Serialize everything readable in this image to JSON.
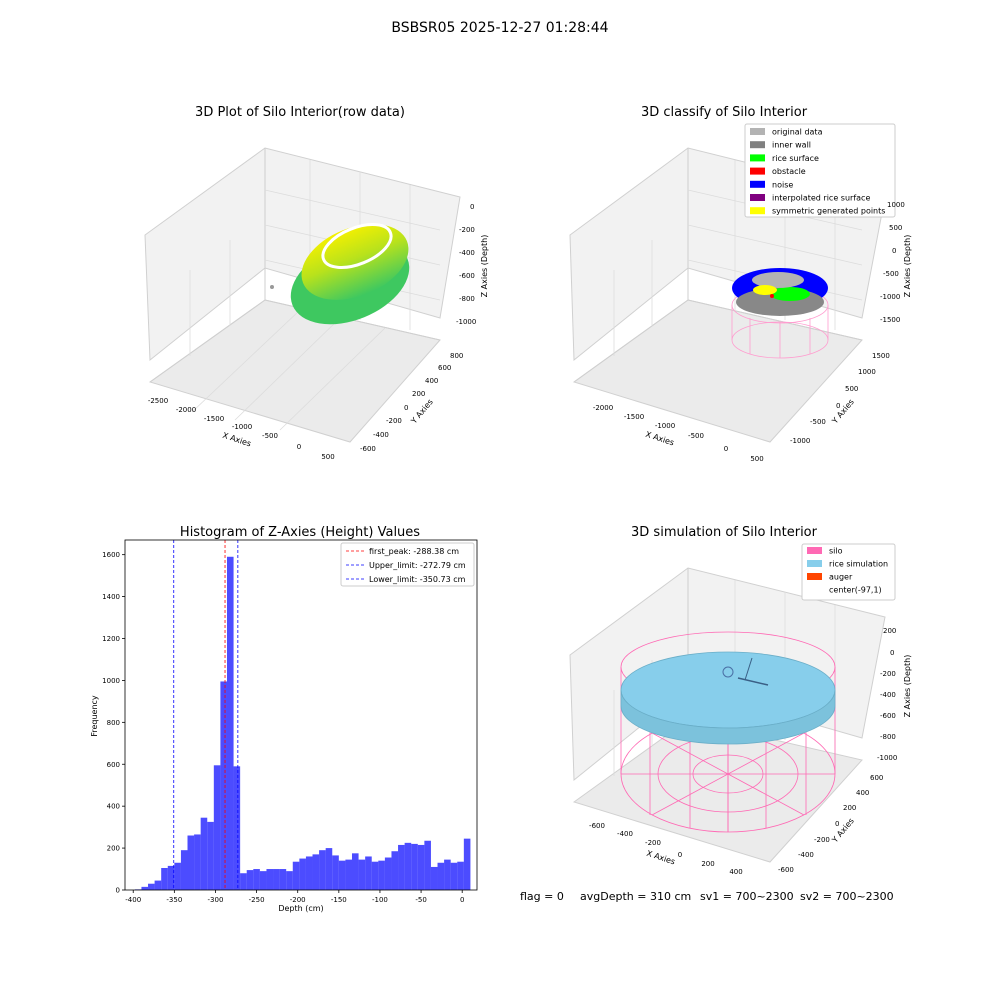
{
  "suptitle": "BSBSR05 2025-12-27 01:28:44",
  "panel_raw": {
    "title": "3D Plot of Silo Interior(row data)",
    "xlabel": "X Axies",
    "ylabel": "Y Axies",
    "zlabel": "Z Axies (Depth)",
    "x_ticks": [
      "-2500",
      "-2000",
      "-1500",
      "-1000",
      "-500",
      "0",
      "500"
    ],
    "y_ticks": [
      "-600",
      "-400",
      "-200",
      "0",
      "200",
      "400",
      "600",
      "800"
    ],
    "z_ticks": [
      "0",
      "-200",
      "-400",
      "-600",
      "-800",
      "-1000"
    ]
  },
  "panel_classify": {
    "title": "3D classify of Silo Interior",
    "xlabel": "X Axies",
    "ylabel": "Y Axies",
    "zlabel": "Z Axies (Depth)",
    "x_ticks": [
      "-2000",
      "-1500",
      "-1000",
      "-500",
      "0",
      "500"
    ],
    "y_ticks": [
      "-1000",
      "-500",
      "0",
      "500",
      "1000",
      "1500"
    ],
    "z_ticks": [
      "1000",
      "500",
      "0",
      "-500",
      "-1000",
      "-1500"
    ],
    "legend": [
      {
        "label": "original data",
        "color": "#b3b3b3"
      },
      {
        "label": "inner wall",
        "color": "#808080"
      },
      {
        "label": "rice surface",
        "color": "#00ff00"
      },
      {
        "label": "obstacle",
        "color": "#ff0000"
      },
      {
        "label": "noise",
        "color": "#0000ff"
      },
      {
        "label": "interpolated rice surface",
        "color": "#800080"
      },
      {
        "label": "symmetric generated points",
        "color": "#ffff00"
      }
    ]
  },
  "panel_sim": {
    "title": "3D simulation of Silo Interior",
    "xlabel": "X Axies",
    "ylabel": "Y Axies",
    "zlabel": "Z Axies (Depth)",
    "x_ticks": [
      "-600",
      "-400",
      "-200",
      "0",
      "200",
      "400"
    ],
    "y_ticks": [
      "-600",
      "-400",
      "-200",
      "0",
      "200",
      "400",
      "600"
    ],
    "z_ticks": [
      "200",
      "0",
      "-200",
      "-400",
      "-600",
      "-800",
      "-1000"
    ],
    "legend": [
      {
        "label": "silo",
        "color": "#ff69b4"
      },
      {
        "label": "rice simulation",
        "color": "#87ceeb"
      },
      {
        "label": "auger",
        "color": "#ff4500"
      },
      {
        "label": "center(-97,1)",
        "color": ""
      }
    ]
  },
  "status": {
    "flag": "flag = 0",
    "avg": "avgDepth = 310 cm",
    "sv1": "sv1 = 700~2300",
    "sv2": "sv2 = 700~2300"
  },
  "chart_data": {
    "type": "bar",
    "title": "Histogram of Z-Axies (Height) Values",
    "xlabel": "Depth (cm)",
    "ylabel": "Frequency",
    "xlim": [
      -410,
      18
    ],
    "ylim": [
      0,
      1670
    ],
    "x_ticks": [
      -400,
      -350,
      -300,
      -250,
      -200,
      -150,
      -100,
      -50,
      0
    ],
    "y_ticks": [
      0,
      200,
      400,
      600,
      800,
      1000,
      1200,
      1400,
      1600
    ],
    "bar_color": "#0000ff",
    "bin_width": 8,
    "bin_start": -398,
    "values": [
      3,
      15,
      30,
      45,
      105,
      115,
      130,
      190,
      260,
      265,
      345,
      325,
      595,
      995,
      1590,
      590,
      80,
      95,
      100,
      90,
      100,
      100,
      100,
      90,
      135,
      150,
      160,
      170,
      190,
      200,
      165,
      140,
      145,
      175,
      145,
      160,
      135,
      140,
      155,
      185,
      215,
      225,
      220,
      215,
      235,
      110,
      130,
      145,
      130,
      135,
      245
    ],
    "vlines": [
      {
        "label": "first_peak: -288.38 cm",
        "x": -288.38,
        "color": "#ff0000"
      },
      {
        "label": "Upper_limit: -272.79 cm",
        "x": -272.79,
        "color": "#0000ff"
      },
      {
        "label": "Lower_limit: -350.73 cm",
        "x": -350.73,
        "color": "#0000ff"
      }
    ]
  }
}
